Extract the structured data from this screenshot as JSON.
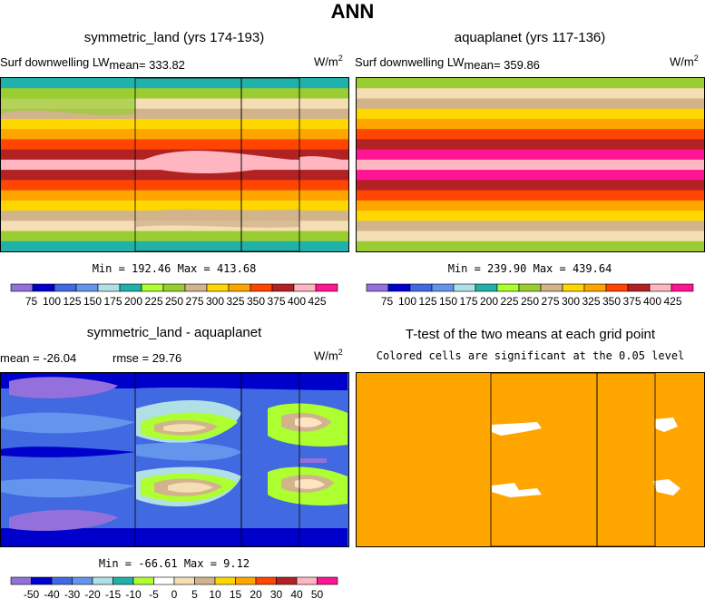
{
  "main_title": "ANN",
  "panels": {
    "p1": {
      "title": "symmetric_land (yrs 174-193)",
      "field": "Surf downwelling LW",
      "mean_text": "mean= 333.82",
      "units_base": "W/m",
      "units_exp": "2",
      "minmax": "Min = 192.46  Max = 413.68"
    },
    "p2": {
      "title": "aquaplanet (yrs 117-136)",
      "field": "Surf downwelling LW",
      "mean_text": "mean= 359.86",
      "units_base": "W/m",
      "units_exp": "2",
      "minmax": "Min = 239.90  Max = 439.64"
    },
    "p3": {
      "title": "symmetric_land - aquaplanet",
      "mean_text": "mean = -26.04",
      "rmse_text": "rmse =   29.76",
      "units_base": "W/m",
      "units_exp": "2",
      "minmax": "Min = -66.61  Max =    9.12"
    },
    "p4": {
      "title": "T-test of the two means at each grid point",
      "subtitle": "Colored cells are significant at the 0.05 level"
    }
  },
  "chart_data": [
    {
      "type": "heatmap",
      "title": "symmetric_land (yrs 174-193)",
      "variable": "Surf downwelling LW",
      "units": "W/m^2",
      "mean": 333.82,
      "min": 192.46,
      "max": 413.68,
      "colorbar": {
        "labels": [
          "75",
          "100",
          "125",
          "150",
          "175",
          "200",
          "225",
          "250",
          "275",
          "300",
          "325",
          "350",
          "375",
          "400",
          "425"
        ],
        "colors": [
          "#9370db",
          "#0000cd",
          "#4169e1",
          "#6495ed",
          "#b0e0e6",
          "#20b2aa",
          "#adff2f",
          "#9acd32",
          "#d2b48c",
          "#ffd700",
          "#ffa500",
          "#ff4500",
          "#b22222",
          "#ffb6c1",
          "#ff1493"
        ]
      }
    },
    {
      "type": "heatmap",
      "title": "aquaplanet (yrs 117-136)",
      "variable": "Surf downwelling LW",
      "units": "W/m^2",
      "mean": 359.86,
      "min": 239.9,
      "max": 439.64,
      "colorbar": {
        "labels": [
          "75",
          "100",
          "125",
          "150",
          "175",
          "200",
          "225",
          "250",
          "275",
          "300",
          "325",
          "350",
          "375",
          "400",
          "425"
        ],
        "colors": [
          "#9370db",
          "#0000cd",
          "#4169e1",
          "#6495ed",
          "#b0e0e6",
          "#20b2aa",
          "#adff2f",
          "#9acd32",
          "#d2b48c",
          "#ffd700",
          "#ffa500",
          "#ff4500",
          "#b22222",
          "#ffb6c1",
          "#ff1493"
        ]
      }
    },
    {
      "type": "heatmap",
      "title": "symmetric_land - aquaplanet",
      "units": "W/m^2",
      "mean": -26.04,
      "rmse": 29.76,
      "min": -66.61,
      "max": 9.12,
      "colorbar": {
        "labels": [
          "-50",
          "-40",
          "-30",
          "-20",
          "-15",
          "-10",
          "-5",
          "0",
          "5",
          "10",
          "15",
          "20",
          "30",
          "40",
          "50"
        ],
        "colors": [
          "#9370db",
          "#0000cd",
          "#4169e1",
          "#6495ed",
          "#b0e0e6",
          "#20b2aa",
          "#adff2f",
          "#ffffff",
          "#f5deb3",
          "#d2b48c",
          "#ffd700",
          "#ffa500",
          "#ff4500",
          "#b22222",
          "#ffb6c1",
          "#ff1493"
        ]
      }
    },
    {
      "type": "heatmap",
      "title": "T-test of the two means at each grid point",
      "note": "Colored cells are significant at the 0.05 level",
      "significant_color": "#ffa500"
    }
  ],
  "colors": {
    "p1_bands": [
      "#20b2aa",
      "#9acd32",
      "#f5deb3",
      "#d2b48c",
      "#ffd700",
      "#ffa500",
      "#ff4500",
      "#b22222",
      "#ffb6c1",
      "#b22222",
      "#ff4500",
      "#ffa500",
      "#ffd700",
      "#d2b48c",
      "#f5deb3",
      "#9acd32",
      "#20b2aa"
    ],
    "p2_bands": [
      "#9acd32",
      "#f5deb3",
      "#d2b48c",
      "#ffd700",
      "#ffa500",
      "#ff4500",
      "#b22222",
      "#ff1493",
      "#ffb6c1",
      "#ff1493",
      "#b22222",
      "#ff4500",
      "#ffa500",
      "#ffd700",
      "#d2b48c",
      "#f5deb3",
      "#9acd32"
    ],
    "diff_background": "#4169e1",
    "ttest_fill": "#ffa500"
  }
}
